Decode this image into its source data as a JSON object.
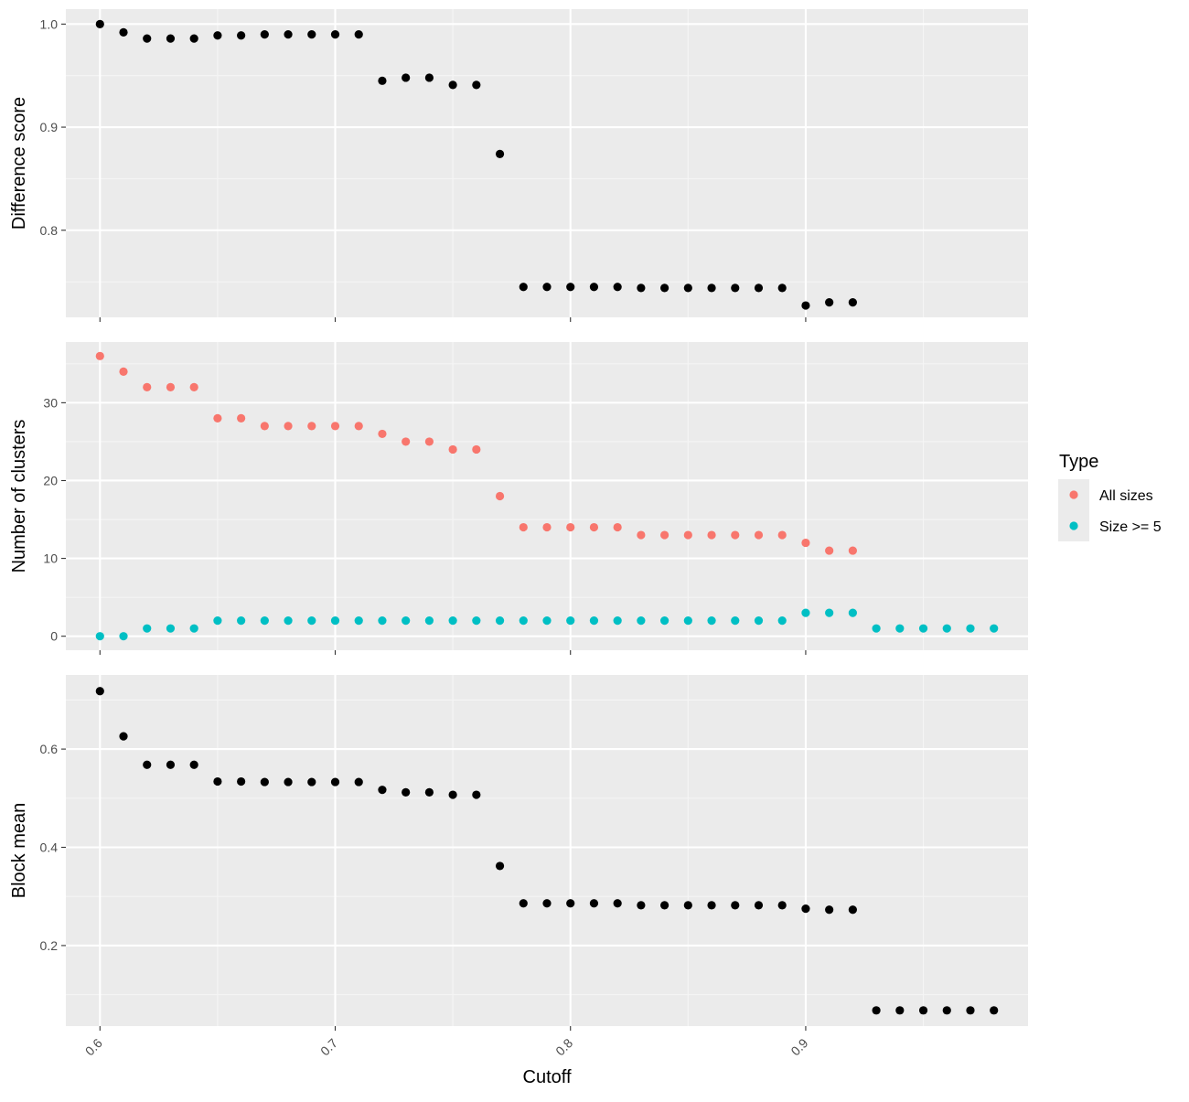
{
  "colors": {
    "panel_bg": "#ebebeb",
    "grid_major": "#ffffff",
    "grid_minor": "#f5f5f5",
    "tick": "#333333",
    "point_default": "#000000",
    "all_sizes": "#f8766d",
    "size_ge5": "#00bfc4",
    "legend_key_bg": "#ebebeb"
  },
  "chart_data": [
    {
      "type": "scatter",
      "ylabel": "Difference score",
      "xlim": [
        0.5855,
        0.9945
      ],
      "ylim": [
        0.7155,
        1.0145
      ],
      "y_ticks": [
        0.8,
        0.9,
        1.0
      ],
      "y_tick_labels": [
        "0.8",
        "0.9",
        "1.0"
      ],
      "series": [
        {
          "color_key": "point_default",
          "x": [
            0.6,
            0.61,
            0.62,
            0.63,
            0.64,
            0.65,
            0.66,
            0.67,
            0.68,
            0.69,
            0.7,
            0.71,
            0.72,
            0.73,
            0.74,
            0.75,
            0.76,
            0.77,
            0.78,
            0.79,
            0.8,
            0.81,
            0.82,
            0.83,
            0.84,
            0.85,
            0.86,
            0.87,
            0.88,
            0.89,
            0.9,
            0.91,
            0.92
          ],
          "y": [
            1.0,
            0.992,
            0.986,
            0.986,
            0.986,
            0.989,
            0.989,
            0.99,
            0.99,
            0.99,
            0.99,
            0.99,
            0.945,
            0.948,
            0.948,
            0.941,
            0.941,
            0.874,
            0.745,
            0.745,
            0.745,
            0.745,
            0.745,
            0.744,
            0.744,
            0.744,
            0.744,
            0.744,
            0.744,
            0.744,
            0.727,
            0.73,
            0.73
          ]
        }
      ]
    },
    {
      "type": "scatter",
      "ylabel": "Number of clusters",
      "xlim": [
        0.5855,
        0.9945
      ],
      "ylim": [
        -1.8,
        37.8
      ],
      "y_ticks": [
        0,
        10,
        20,
        30
      ],
      "y_tick_labels": [
        "0",
        "10",
        "20",
        "30"
      ],
      "legend": {
        "title": "Type",
        "placement": "right",
        "entries": [
          "All sizes",
          "Size >= 5"
        ]
      },
      "series": [
        {
          "name": "All sizes",
          "color_key": "all_sizes",
          "x": [
            0.6,
            0.61,
            0.62,
            0.63,
            0.64,
            0.65,
            0.66,
            0.67,
            0.68,
            0.69,
            0.7,
            0.71,
            0.72,
            0.73,
            0.74,
            0.75,
            0.76,
            0.77,
            0.78,
            0.79,
            0.8,
            0.81,
            0.82,
            0.83,
            0.84,
            0.85,
            0.86,
            0.87,
            0.88,
            0.89,
            0.9,
            0.91,
            0.92
          ],
          "y": [
            36,
            34,
            32,
            32,
            32,
            28,
            28,
            27,
            27,
            27,
            27,
            27,
            26,
            25,
            25,
            24,
            24,
            18,
            14,
            14,
            14,
            14,
            14,
            13,
            13,
            13,
            13,
            13,
            13,
            13,
            12,
            11,
            11
          ]
        },
        {
          "name": "Size >= 5",
          "color_key": "size_ge5",
          "x": [
            0.6,
            0.61,
            0.62,
            0.63,
            0.64,
            0.65,
            0.66,
            0.67,
            0.68,
            0.69,
            0.7,
            0.71,
            0.72,
            0.73,
            0.74,
            0.75,
            0.76,
            0.77,
            0.78,
            0.79,
            0.8,
            0.81,
            0.82,
            0.83,
            0.84,
            0.85,
            0.86,
            0.87,
            0.88,
            0.89,
            0.9,
            0.91,
            0.92,
            0.93,
            0.94,
            0.95,
            0.96,
            0.97,
            0.98
          ],
          "y": [
            0,
            0,
            1,
            1,
            1,
            2,
            2,
            2,
            2,
            2,
            2,
            2,
            2,
            2,
            2,
            2,
            2,
            2,
            2,
            2,
            2,
            2,
            2,
            2,
            2,
            2,
            2,
            2,
            2,
            2,
            3,
            3,
            3,
            1,
            1,
            1,
            1,
            1,
            1
          ]
        }
      ]
    },
    {
      "type": "scatter",
      "ylabel": "Block mean",
      "xlabel": "Cutoff",
      "xlim": [
        0.5855,
        0.9945
      ],
      "ylim": [
        0.036,
        0.751
      ],
      "x_ticks": [
        0.6,
        0.7,
        0.8,
        0.9
      ],
      "x_tick_labels": [
        "0.6",
        "0.7",
        "0.8",
        "0.9"
      ],
      "y_ticks": [
        0.2,
        0.4,
        0.6
      ],
      "y_tick_labels": [
        "0.2",
        "0.4",
        "0.6"
      ],
      "series": [
        {
          "color_key": "point_default",
          "x": [
            0.6,
            0.61,
            0.62,
            0.63,
            0.64,
            0.65,
            0.66,
            0.67,
            0.68,
            0.69,
            0.7,
            0.71,
            0.72,
            0.73,
            0.74,
            0.75,
            0.76,
            0.77,
            0.78,
            0.79,
            0.8,
            0.81,
            0.82,
            0.83,
            0.84,
            0.85,
            0.86,
            0.87,
            0.88,
            0.89,
            0.9,
            0.91,
            0.92,
            0.93,
            0.94,
            0.95,
            0.96,
            0.97,
            0.98
          ],
          "y": [
            0.718,
            0.626,
            0.568,
            0.568,
            0.568,
            0.534,
            0.534,
            0.533,
            0.533,
            0.533,
            0.533,
            0.533,
            0.517,
            0.512,
            0.512,
            0.507,
            0.507,
            0.362,
            0.286,
            0.286,
            0.286,
            0.286,
            0.286,
            0.282,
            0.282,
            0.282,
            0.282,
            0.282,
            0.282,
            0.282,
            0.275,
            0.273,
            0.273,
            0.068,
            0.068,
            0.068,
            0.068,
            0.068,
            0.068
          ]
        }
      ]
    }
  ]
}
